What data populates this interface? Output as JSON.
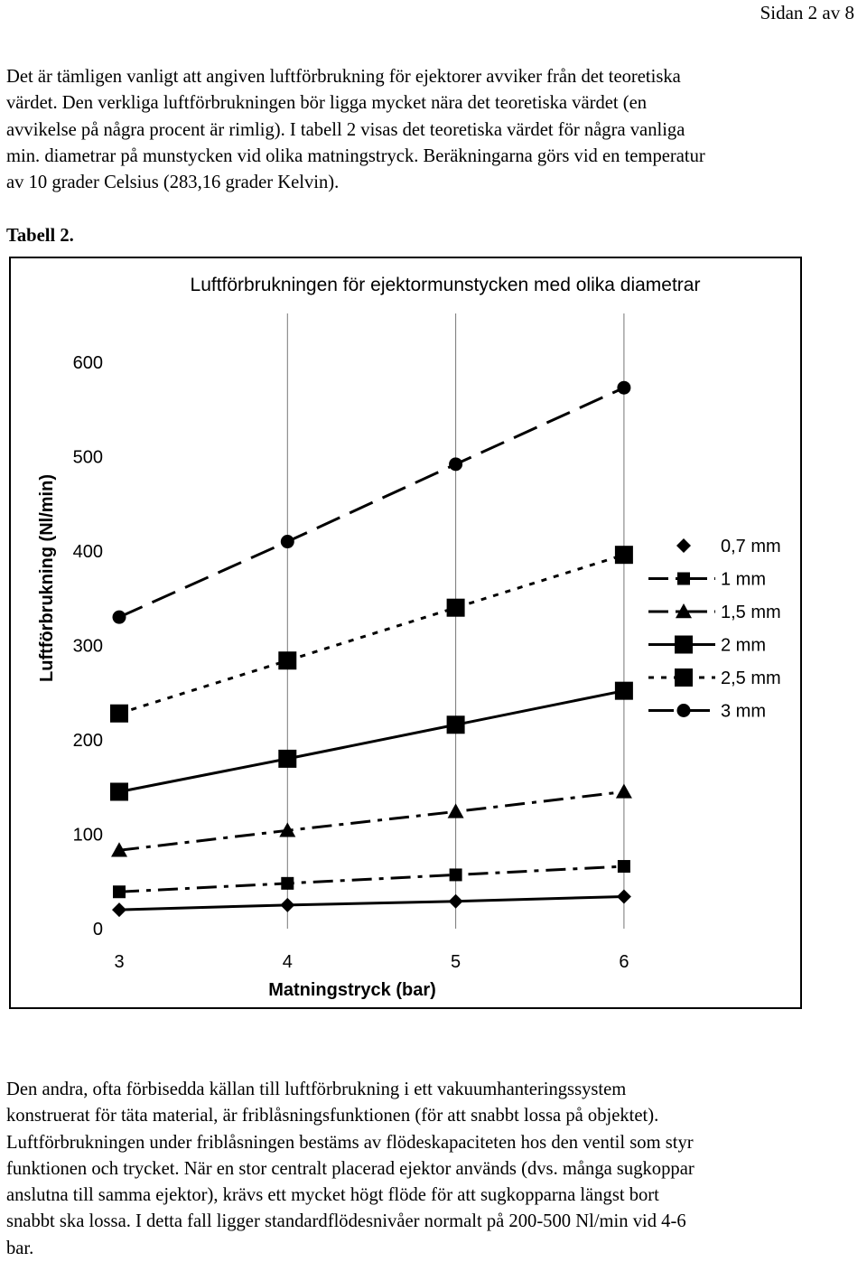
{
  "page": {
    "page_number": "Sidan 2 av 8"
  },
  "intro_paragraph": {
    "lines": [
      "Det är tämligen vanligt att angiven luftförbrukning för ejektorer avviker från det teoretiska",
      "värdet. Den verkliga luftförbrukningen bör ligga mycket nära det teoretiska värdet (en",
      "avvikelse på några procent är rimlig). I tabell 2 visas det teoretiska värdet för några vanliga",
      "min. diametrar på munstycken vid olika matningstryck. Beräkningarna görs vid en temperatur",
      "av 10 grader Celsius (283,16 grader Kelvin)."
    ]
  },
  "table_caption": "Tabell 2.",
  "chart_data": {
    "type": "line",
    "title": "Luftförbrukningen för ejektormunstycken med olika diametrar",
    "xlabel": "Matningstryck (bar)",
    "ylabel": "Luftförbrukning (Nl/min)",
    "x": [
      3,
      4,
      5,
      6
    ],
    "x_ticks": [
      "3",
      "4",
      "5",
      "6"
    ],
    "y_ticks": [
      "0",
      "100",
      "200",
      "300",
      "400",
      "500",
      "600"
    ],
    "xlim": [
      3,
      6
    ],
    "ylim": [
      0,
      650
    ],
    "grid": "vertical",
    "legend_position": "right",
    "series": [
      {
        "name": "0,7 mm",
        "values": [
          20,
          25,
          29,
          34
        ],
        "marker": "diamond",
        "line": "solid"
      },
      {
        "name": "1 mm",
        "values": [
          39,
          48,
          57,
          66
        ],
        "marker": "square",
        "line": "dash-dot"
      },
      {
        "name": "1,5 mm",
        "values": [
          83,
          104,
          124,
          145
        ],
        "marker": "triangle",
        "line": "dash-dot"
      },
      {
        "name": "2 mm",
        "values": [
          145,
          180,
          216,
          252
        ],
        "marker": "big-square",
        "line": "solid"
      },
      {
        "name": "2,5 mm",
        "values": [
          228,
          284,
          340,
          396
        ],
        "marker": "big-square",
        "line": "dotted"
      },
      {
        "name": "3 mm",
        "values": [
          330,
          410,
          492,
          573
        ],
        "marker": "circle",
        "line": "dashed"
      }
    ]
  },
  "body_paragraph": {
    "lines": [
      "Den andra, ofta förbisedda källan till luftförbrukning i ett vakuumhanteringssystem",
      "konstruerat för täta material, är friblåsningsfunktionen (för att snabbt lossa på objektet).",
      "Luftförbrukningen under friblåsningen bestäms av flödeskapaciteten hos den ventil som styr",
      "funktionen och trycket. När en stor centralt placerad ejektor används (dvs. många sugkoppar",
      "anslutna till samma ejektor), krävs ett mycket högt flöde för att sugkopparna längst bort",
      "snabbt ska lossa. I detta fall ligger standardflödesnivåer normalt på 200-500 Nl/min vid 4-6",
      "bar."
    ]
  },
  "colors": {
    "ink": "#000000",
    "background": "#ffffff"
  }
}
